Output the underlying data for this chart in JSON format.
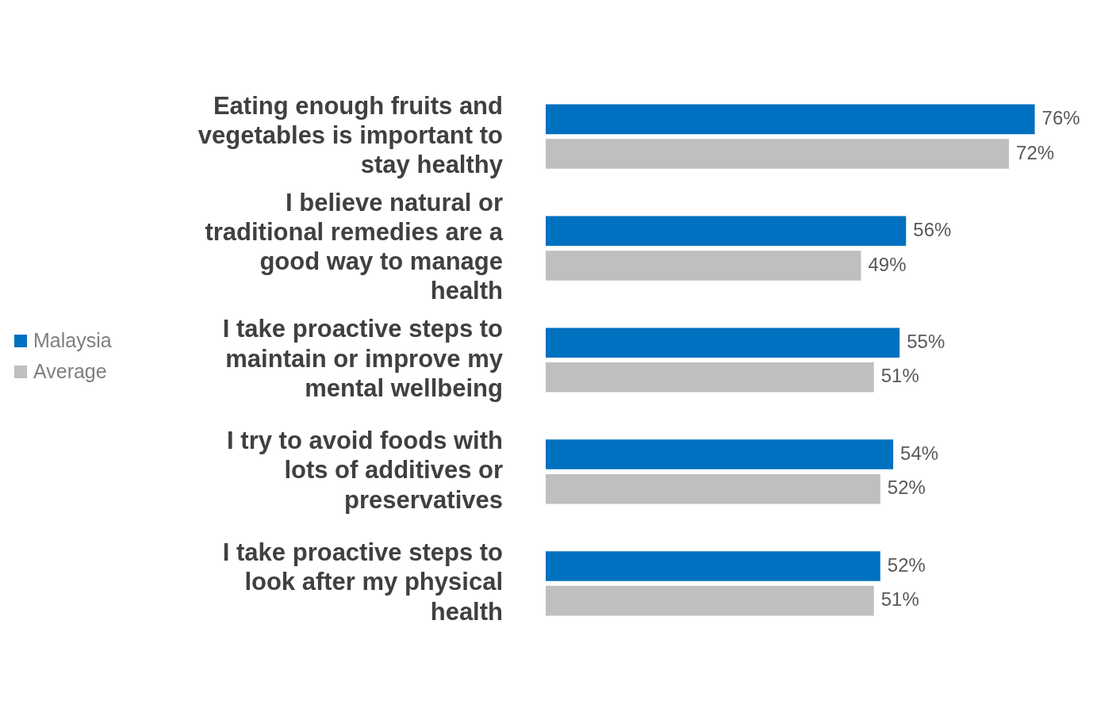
{
  "chart_data": {
    "type": "bar",
    "orientation": "horizontal",
    "categories": [
      "Eating enough fruits and vegetables is important to stay healthy",
      "I believe natural or traditional remedies are a good way to manage health",
      "I take proactive steps to maintain or improve my mental wellbeing",
      "I try to avoid foods with lots of additives or preservatives",
      "I take proactive steps to look after my physical health"
    ],
    "series": [
      {
        "name": "Malaysia",
        "color": "#0070c0",
        "values": [
          76,
          56,
          55,
          54,
          52
        ],
        "value_labels": [
          "76%",
          "56%",
          "55%",
          "54%",
          "52%"
        ]
      },
      {
        "name": "Average",
        "color": "#bfbfbf",
        "values": [
          72,
          49,
          51,
          52,
          51
        ],
        "value_labels": [
          "72%",
          "49%",
          "51%",
          "52%",
          "51%"
        ]
      }
    ],
    "tick_labels": "y",
    "legend": "left"
  }
}
